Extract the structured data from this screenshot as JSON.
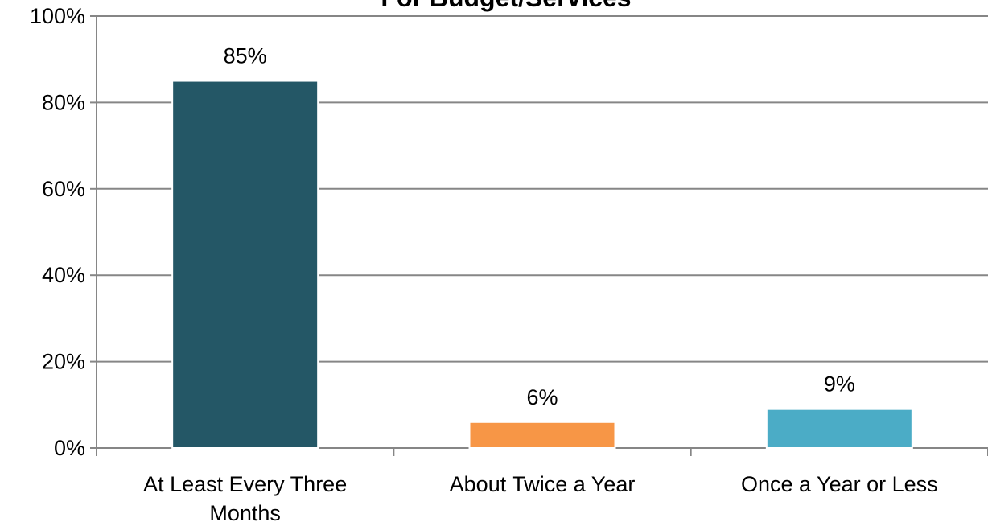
{
  "chart_data": {
    "type": "bar",
    "title": "For Budget/Services",
    "xlabel": "",
    "ylabel": "",
    "categories": [
      [
        "At Least Every Three",
        "Months"
      ],
      [
        "About Twice a Year"
      ],
      [
        "Once a Year or Less"
      ]
    ],
    "values": [
      85,
      6,
      9
    ],
    "data_labels": [
      "85%",
      "6%",
      "9%"
    ],
    "colors": [
      "#245766",
      "#f79646",
      "#4bacc6"
    ],
    "ylim": [
      0,
      100
    ],
    "yticks": [
      0,
      20,
      40,
      60,
      80,
      100
    ],
    "ytick_labels": [
      "0%",
      "20%",
      "40%",
      "60%",
      "80%",
      "100%"
    ],
    "grid": true,
    "legend": "none"
  }
}
